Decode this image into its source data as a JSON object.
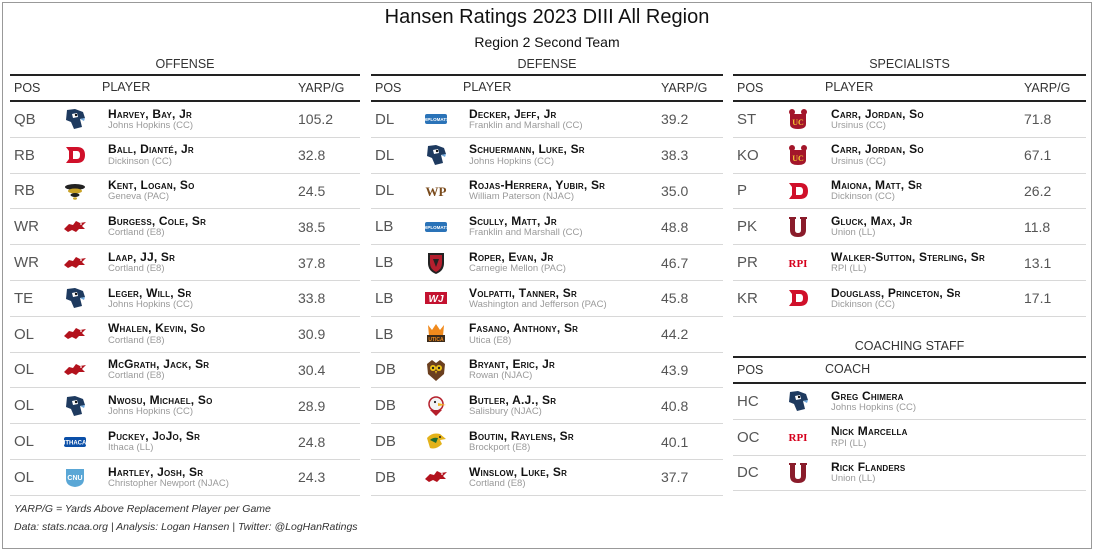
{
  "header": {
    "title": "Hansen Ratings 2023 DIII All Region",
    "subtitle": "Region 2 Second Team"
  },
  "columns": {
    "pos": "POS",
    "player": "PLAYER",
    "value": "YARP/G",
    "coach": "COACH"
  },
  "offense": {
    "title": "OFFENSE",
    "rows": [
      {
        "pos": "QB",
        "name": "Harvey, Bay, Jr",
        "school": "Johns Hopkins (CC)",
        "value": "105.2",
        "logo": "blue-jay-icon"
      },
      {
        "pos": "RB",
        "name": "Ball, Dianté, Jr",
        "school": "Dickinson (CC)",
        "value": "32.8",
        "logo": "dickinson-d-icon"
      },
      {
        "pos": "RB",
        "name": "Kent, Logan, So",
        "school": "Geneva (PAC)",
        "value": "24.5",
        "logo": "golden-tornado-icon"
      },
      {
        "pos": "WR",
        "name": "Burgess, Cole, Sr",
        "school": "Cortland (E8)",
        "value": "38.5",
        "logo": "red-dragon-icon"
      },
      {
        "pos": "WR",
        "name": "Laap, JJ, Sr",
        "school": "Cortland (E8)",
        "value": "37.8",
        "logo": "red-dragon-icon"
      },
      {
        "pos": "TE",
        "name": "Leger, Will, Sr",
        "school": "Johns Hopkins (CC)",
        "value": "33.8",
        "logo": "blue-jay-icon"
      },
      {
        "pos": "OL",
        "name": "Whalen, Kevin, So",
        "school": "Cortland (E8)",
        "value": "30.9",
        "logo": "red-dragon-icon"
      },
      {
        "pos": "OL",
        "name": "McGrath, Jack, Sr",
        "school": "Cortland (E8)",
        "value": "30.4",
        "logo": "red-dragon-icon"
      },
      {
        "pos": "OL",
        "name": "Nwosu, Michael, So",
        "school": "Johns Hopkins (CC)",
        "value": "28.9",
        "logo": "blue-jay-icon"
      },
      {
        "pos": "OL",
        "name": "Puckey, JoJo, Sr",
        "school": "Ithaca (LL)",
        "value": "24.8",
        "logo": "ithaca-icon"
      },
      {
        "pos": "OL",
        "name": "Hartley, Josh, Sr",
        "school": "Christopher Newport (NJAC)",
        "value": "24.3",
        "logo": "cnu-icon"
      }
    ]
  },
  "defense": {
    "title": "DEFENSE",
    "rows": [
      {
        "pos": "DL",
        "name": "Decker, Jeff, Jr",
        "school": "Franklin and Marshall (CC)",
        "value": "39.2",
        "logo": "diplomats-icon"
      },
      {
        "pos": "DL",
        "name": "Schuermann, Luke, Sr",
        "school": "Johns Hopkins (CC)",
        "value": "38.3",
        "logo": "blue-jay-icon"
      },
      {
        "pos": "DL",
        "name": "Rojas-Herrera, Yubir, Sr",
        "school": "William Paterson (NJAC)",
        "value": "35.0",
        "logo": "wp-icon"
      },
      {
        "pos": "LB",
        "name": "Scully, Matt, Jr",
        "school": "Franklin and Marshall (CC)",
        "value": "48.8",
        "logo": "diplomats-icon"
      },
      {
        "pos": "LB",
        "name": "Roper, Evan, Jr",
        "school": "Carnegie Mellon (PAC)",
        "value": "46.7",
        "logo": "tartan-shield-icon"
      },
      {
        "pos": "LB",
        "name": "Volpatti, Tanner, Sr",
        "school": "Washington and Jefferson (PAC)",
        "value": "45.8",
        "logo": "wj-icon"
      },
      {
        "pos": "LB",
        "name": "Fasano, Anthony, Sr",
        "school": "Utica (E8)",
        "value": "44.2",
        "logo": "utica-icon"
      },
      {
        "pos": "DB",
        "name": "Bryant, Eric, Jr",
        "school": "Rowan (NJAC)",
        "value": "43.9",
        "logo": "owl-icon"
      },
      {
        "pos": "DB",
        "name": "Butler, A.J., Sr",
        "school": "Salisbury (NJAC)",
        "value": "40.8",
        "logo": "seagull-icon"
      },
      {
        "pos": "DB",
        "name": "Boutin, Raylens, Sr",
        "school": "Brockport (E8)",
        "value": "40.1",
        "logo": "golden-eagle-icon"
      },
      {
        "pos": "DB",
        "name": "Winslow, Luke, Sr",
        "school": "Cortland (E8)",
        "value": "37.7",
        "logo": "red-dragon-icon"
      }
    ]
  },
  "specialists": {
    "title": "SPECIALISTS",
    "rows": [
      {
        "pos": "ST",
        "name": "Carr, Jordan, So",
        "school": "Ursinus (CC)",
        "value": "71.8",
        "logo": "ursinus-bear-icon"
      },
      {
        "pos": "KO",
        "name": "Carr, Jordan, So",
        "school": "Ursinus (CC)",
        "value": "67.1",
        "logo": "ursinus-bear-icon"
      },
      {
        "pos": "P",
        "name": "Maiona, Matt, Sr",
        "school": "Dickinson (CC)",
        "value": "26.2",
        "logo": "dickinson-d-icon"
      },
      {
        "pos": "PK",
        "name": "Gluck, Max, Jr",
        "school": "Union (LL)",
        "value": "11.8",
        "logo": "union-u-icon"
      },
      {
        "pos": "PR",
        "name": "Walker-Sutton, Sterling, Sr",
        "school": "RPI (LL)",
        "value": "13.1",
        "logo": "rpi-icon"
      },
      {
        "pos": "KR",
        "name": "Douglass, Princeton, Sr",
        "school": "Dickinson (CC)",
        "value": "17.1",
        "logo": "dickinson-d-icon"
      }
    ]
  },
  "coaching": {
    "title": "COACHING STAFF",
    "rows": [
      {
        "pos": "HC",
        "name": "Greg Chimera",
        "school": "Johns Hopkins (CC)",
        "logo": "blue-jay-icon"
      },
      {
        "pos": "OC",
        "name": "Nick Marcella",
        "school": "RPI (LL)",
        "logo": "rpi-icon"
      },
      {
        "pos": "DC",
        "name": "Rick Flanders",
        "school": "Union (LL)",
        "logo": "union-u-icon"
      }
    ]
  },
  "footer": {
    "note": "YARP/G = Yards Above Replacement Player per Game",
    "credits": "Data: stats.ncaa.org | Analysis: Logan Hansen | Twitter: @LogHanRatings"
  }
}
